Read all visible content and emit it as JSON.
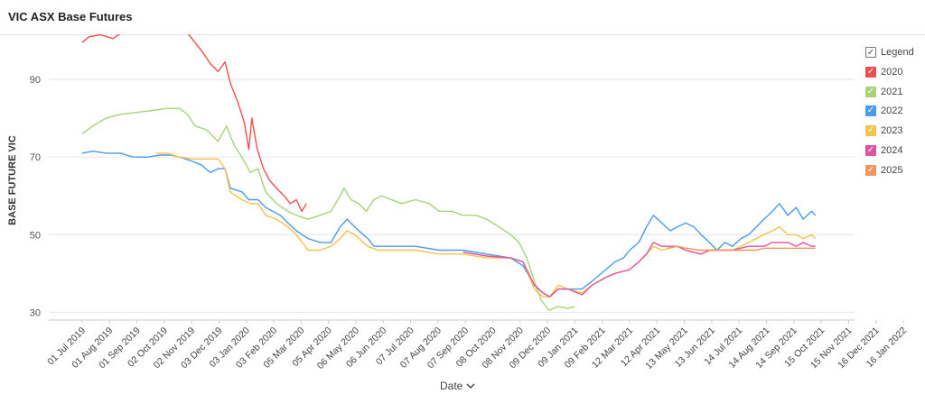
{
  "title": "VIC ASX Base Futures",
  "legend": {
    "header": "Legend",
    "items": [
      {
        "label": "2020",
        "color": "#f04f4f"
      },
      {
        "label": "2021",
        "color": "#a8d27a"
      },
      {
        "label": "2022",
        "color": "#4c9bef"
      },
      {
        "label": "2023",
        "color": "#f7c24a"
      },
      {
        "label": "2024",
        "color": "#e0529f"
      },
      {
        "label": "2025",
        "color": "#f4965a"
      }
    ]
  },
  "x_title": "Date",
  "chart_data": {
    "type": "line",
    "ylabel": "BASE FUTURE VIC",
    "xlabel": "Date",
    "ylim": [
      28,
      100
    ],
    "y_ticks": [
      30,
      50,
      70,
      90
    ],
    "x_range": [
      "2019-07-01",
      "2022-02-28"
    ],
    "x_ticks": [
      "01 Jul 2019",
      "01 Aug 2019",
      "01 Sep 2019",
      "02 Oct 2019",
      "02 Nov 2019",
      "03 Dec 2019",
      "03 Jan 2020",
      "03 Feb 2020",
      "05 Mar 2020",
      "05 Apr 2020",
      "06 May 2020",
      "06 Jun 2020",
      "07 Jul 2020",
      "07 Aug 2020",
      "07 Sep 2020",
      "08 Oct 2020",
      "08 Nov 2020",
      "09 Dec 2020",
      "09 Jan 2021",
      "09 Feb 2021",
      "12 Mar 2021",
      "12 Apr 2021",
      "13 May 2021",
      "13 Jun 2021",
      "14 Jul 2021",
      "14 Aug 2021",
      "14 Sep 2021",
      "15 Oct 2021",
      "15 Nov 2021",
      "16 Dec 2021",
      "16 Jan 2022"
    ],
    "series": [
      {
        "name": "2020",
        "color": "#f04f4f",
        "points": [
          [
            "2019-07-01",
            99.5
          ],
          [
            "2019-07-10",
            101
          ],
          [
            "2019-07-25",
            101.5
          ],
          [
            "2019-08-10",
            100.5
          ],
          [
            "2019-08-25",
            102.5
          ],
          [
            "2019-09-10",
            104
          ],
          [
            "2019-09-25",
            103.5
          ],
          [
            "2019-10-10",
            104
          ],
          [
            "2019-10-25",
            104.5
          ],
          [
            "2019-11-05",
            104.5
          ],
          [
            "2019-11-15",
            102
          ],
          [
            "2019-11-25",
            99.5
          ],
          [
            "2019-12-05",
            97
          ],
          [
            "2019-12-15",
            94
          ],
          [
            "2019-12-25",
            92
          ],
          [
            "2020-01-03",
            94.5
          ],
          [
            "2020-01-10",
            89
          ],
          [
            "2020-01-20",
            84
          ],
          [
            "2020-01-28",
            79
          ],
          [
            "2020-02-03",
            72
          ],
          [
            "2020-02-07",
            80
          ],
          [
            "2020-02-14",
            72
          ],
          [
            "2020-02-22",
            67
          ],
          [
            "2020-03-01",
            64
          ],
          [
            "2020-03-10",
            62
          ],
          [
            "2020-03-20",
            60
          ],
          [
            "2020-03-28",
            58
          ],
          [
            "2020-04-05",
            59
          ],
          [
            "2020-04-12",
            56
          ],
          [
            "2020-04-18",
            58
          ]
        ]
      },
      {
        "name": "2021",
        "color": "#a8d27a",
        "points": [
          [
            "2019-07-01",
            76
          ],
          [
            "2019-07-15",
            78
          ],
          [
            "2019-08-01",
            80
          ],
          [
            "2019-08-20",
            81
          ],
          [
            "2019-09-10",
            81.5
          ],
          [
            "2019-10-01",
            82
          ],
          [
            "2019-10-20",
            82.5
          ],
          [
            "2019-11-05",
            82.5
          ],
          [
            "2019-11-15",
            81
          ],
          [
            "2019-11-25",
            78
          ],
          [
            "2019-12-10",
            77
          ],
          [
            "2019-12-25",
            74
          ],
          [
            "2020-01-05",
            78
          ],
          [
            "2020-01-15",
            73
          ],
          [
            "2020-01-25",
            70
          ],
          [
            "2020-02-05",
            66
          ],
          [
            "2020-02-15",
            67
          ],
          [
            "2020-02-25",
            61
          ],
          [
            "2020-03-10",
            58
          ],
          [
            "2020-03-25",
            56
          ],
          [
            "2020-04-05",
            55
          ],
          [
            "2020-04-20",
            54
          ],
          [
            "2020-05-06",
            55
          ],
          [
            "2020-05-20",
            56
          ],
          [
            "2020-06-01",
            60
          ],
          [
            "2020-06-06",
            62
          ],
          [
            "2020-06-15",
            59
          ],
          [
            "2020-06-25",
            58
          ],
          [
            "2020-07-05",
            56
          ],
          [
            "2020-07-15",
            59
          ],
          [
            "2020-07-25",
            60
          ],
          [
            "2020-08-07",
            59
          ],
          [
            "2020-08-20",
            58
          ],
          [
            "2020-09-07",
            59
          ],
          [
            "2020-09-25",
            58
          ],
          [
            "2020-10-08",
            56
          ],
          [
            "2020-10-25",
            56
          ],
          [
            "2020-11-08",
            55
          ],
          [
            "2020-11-25",
            55
          ],
          [
            "2020-12-09",
            54
          ],
          [
            "2020-12-25",
            52
          ],
          [
            "2021-01-09",
            50
          ],
          [
            "2021-01-20",
            48
          ],
          [
            "2021-01-30",
            44
          ],
          [
            "2021-02-09",
            38
          ],
          [
            "2021-02-18",
            33
          ],
          [
            "2021-02-28",
            30.5
          ],
          [
            "2021-03-12",
            31.5
          ],
          [
            "2021-03-25",
            31
          ],
          [
            "2021-04-02",
            31.5
          ]
        ]
      },
      {
        "name": "2022",
        "color": "#4c9bef",
        "points": [
          [
            "2019-07-01",
            71
          ],
          [
            "2019-07-15",
            71.5
          ],
          [
            "2019-08-01",
            71
          ],
          [
            "2019-08-20",
            71
          ],
          [
            "2019-09-05",
            70
          ],
          [
            "2019-09-25",
            70
          ],
          [
            "2019-10-10",
            70.5
          ],
          [
            "2019-10-25",
            70.5
          ],
          [
            "2019-11-05",
            70
          ],
          [
            "2019-11-20",
            69
          ],
          [
            "2019-12-03",
            68
          ],
          [
            "2019-12-15",
            66
          ],
          [
            "2019-12-25",
            67
          ],
          [
            "2020-01-03",
            67
          ],
          [
            "2020-01-10",
            62
          ],
          [
            "2020-01-25",
            61
          ],
          [
            "2020-02-03",
            59
          ],
          [
            "2020-02-15",
            59
          ],
          [
            "2020-02-25",
            57
          ],
          [
            "2020-03-05",
            56
          ],
          [
            "2020-03-15",
            55
          ],
          [
            "2020-03-25",
            53
          ],
          [
            "2020-04-05",
            51
          ],
          [
            "2020-04-20",
            49
          ],
          [
            "2020-05-06",
            48
          ],
          [
            "2020-05-20",
            48
          ],
          [
            "2020-06-01",
            52
          ],
          [
            "2020-06-10",
            54
          ],
          [
            "2020-06-20",
            52
          ],
          [
            "2020-07-01",
            50
          ],
          [
            "2020-07-07",
            49
          ],
          [
            "2020-07-15",
            47
          ],
          [
            "2020-08-07",
            47
          ],
          [
            "2020-09-07",
            47
          ],
          [
            "2020-10-08",
            46
          ],
          [
            "2020-11-08",
            46
          ],
          [
            "2020-12-09",
            45
          ],
          [
            "2021-01-09",
            44
          ],
          [
            "2021-01-25",
            42
          ],
          [
            "2021-02-09",
            37
          ],
          [
            "2021-02-20",
            35
          ],
          [
            "2021-03-01",
            34
          ],
          [
            "2021-03-12",
            36
          ],
          [
            "2021-03-25",
            36
          ],
          [
            "2021-04-12",
            36
          ],
          [
            "2021-04-25",
            38
          ],
          [
            "2021-05-13",
            41
          ],
          [
            "2021-05-25",
            43
          ],
          [
            "2021-06-05",
            44
          ],
          [
            "2021-06-13",
            46
          ],
          [
            "2021-06-25",
            48
          ],
          [
            "2021-07-05",
            52
          ],
          [
            "2021-07-14",
            55
          ],
          [
            "2021-07-25",
            53
          ],
          [
            "2021-08-05",
            51
          ],
          [
            "2021-08-14",
            52
          ],
          [
            "2021-08-25",
            53
          ],
          [
            "2021-09-05",
            52
          ],
          [
            "2021-09-14",
            50
          ],
          [
            "2021-09-25",
            48
          ],
          [
            "2021-10-05",
            46
          ],
          [
            "2021-10-15",
            48
          ],
          [
            "2021-10-25",
            47
          ],
          [
            "2021-11-05",
            49
          ],
          [
            "2021-11-15",
            50
          ],
          [
            "2021-11-25",
            52
          ],
          [
            "2021-12-05",
            54
          ],
          [
            "2021-12-16",
            56
          ],
          [
            "2021-12-25",
            58
          ],
          [
            "2022-01-05",
            55
          ],
          [
            "2022-01-16",
            57
          ],
          [
            "2022-01-25",
            54
          ],
          [
            "2022-02-05",
            56
          ],
          [
            "2022-02-10",
            55
          ]
        ]
      },
      {
        "name": "2023",
        "color": "#f7c24a",
        "points": [
          [
            "2019-10-05",
            71
          ],
          [
            "2019-10-20",
            71
          ],
          [
            "2019-11-05",
            70
          ],
          [
            "2019-11-20",
            69.5
          ],
          [
            "2019-12-10",
            69.5
          ],
          [
            "2019-12-25",
            69.5
          ],
          [
            "2020-01-03",
            67
          ],
          [
            "2020-01-10",
            61
          ],
          [
            "2020-01-25",
            59
          ],
          [
            "2020-02-05",
            58
          ],
          [
            "2020-02-15",
            58
          ],
          [
            "2020-02-25",
            55
          ],
          [
            "2020-03-10",
            54
          ],
          [
            "2020-03-25",
            52
          ],
          [
            "2020-04-05",
            50
          ],
          [
            "2020-04-20",
            46
          ],
          [
            "2020-05-06",
            46
          ],
          [
            "2020-05-20",
            47
          ],
          [
            "2020-06-01",
            49
          ],
          [
            "2020-06-10",
            51
          ],
          [
            "2020-06-20",
            50
          ],
          [
            "2020-07-01",
            48
          ],
          [
            "2020-07-07",
            47
          ],
          [
            "2020-07-20",
            46
          ],
          [
            "2020-08-07",
            46
          ],
          [
            "2020-09-07",
            46
          ],
          [
            "2020-10-08",
            45
          ],
          [
            "2020-11-08",
            45
          ],
          [
            "2020-12-09",
            44
          ],
          [
            "2021-01-09",
            44
          ],
          [
            "2021-01-25",
            43
          ],
          [
            "2021-02-09",
            36
          ],
          [
            "2021-02-20",
            34
          ],
          [
            "2021-03-01",
            34
          ],
          [
            "2021-03-12",
            37
          ],
          [
            "2021-03-25",
            36
          ],
          [
            "2021-04-12",
            35
          ],
          [
            "2021-04-25",
            37
          ],
          [
            "2021-05-13",
            39
          ],
          [
            "2021-05-25",
            40
          ],
          [
            "2021-06-13",
            41
          ],
          [
            "2021-06-25",
            43
          ],
          [
            "2021-07-05",
            45
          ],
          [
            "2021-07-14",
            47
          ],
          [
            "2021-07-25",
            46
          ],
          [
            "2021-08-14",
            47
          ],
          [
            "2021-08-25",
            46
          ],
          [
            "2021-09-14",
            45
          ],
          [
            "2021-09-25",
            46
          ],
          [
            "2021-10-15",
            46
          ],
          [
            "2021-10-25",
            46
          ],
          [
            "2021-11-05",
            47
          ],
          [
            "2021-11-15",
            48
          ],
          [
            "2021-11-25",
            49
          ],
          [
            "2021-12-05",
            50
          ],
          [
            "2021-12-16",
            51
          ],
          [
            "2021-12-25",
            52
          ],
          [
            "2022-01-05",
            50
          ],
          [
            "2022-01-16",
            50
          ],
          [
            "2022-01-25",
            49
          ],
          [
            "2022-02-05",
            50
          ],
          [
            "2022-02-10",
            49
          ]
        ]
      },
      {
        "name": "2024",
        "color": "#e0529f",
        "points": [
          [
            "2020-11-08",
            45.5
          ],
          [
            "2020-12-09",
            44.5
          ],
          [
            "2021-01-09",
            44
          ],
          [
            "2021-01-25",
            43
          ],
          [
            "2021-02-09",
            37
          ],
          [
            "2021-02-20",
            35
          ],
          [
            "2021-03-01",
            34
          ],
          [
            "2021-03-12",
            36
          ],
          [
            "2021-03-25",
            36
          ],
          [
            "2021-04-12",
            34.5
          ],
          [
            "2021-04-25",
            37
          ],
          [
            "2021-05-13",
            39
          ],
          [
            "2021-05-25",
            40
          ],
          [
            "2021-06-13",
            41
          ],
          [
            "2021-06-25",
            43
          ],
          [
            "2021-07-05",
            45
          ],
          [
            "2021-07-14",
            48
          ],
          [
            "2021-07-25",
            47
          ],
          [
            "2021-08-14",
            47
          ],
          [
            "2021-08-25",
            46
          ],
          [
            "2021-09-14",
            45
          ],
          [
            "2021-09-25",
            46
          ],
          [
            "2021-10-15",
            46
          ],
          [
            "2021-10-25",
            46
          ],
          [
            "2021-11-15",
            47
          ],
          [
            "2021-11-25",
            47
          ],
          [
            "2021-12-05",
            47
          ],
          [
            "2021-12-16",
            48
          ],
          [
            "2021-12-25",
            48
          ],
          [
            "2022-01-05",
            48
          ],
          [
            "2022-01-16",
            47
          ],
          [
            "2022-01-25",
            48
          ],
          [
            "2022-02-05",
            47
          ],
          [
            "2022-02-10",
            47
          ]
        ]
      },
      {
        "name": "2025",
        "color": "#f4965a",
        "points": [
          [
            "2021-08-01",
            46.5
          ],
          [
            "2021-08-14",
            47
          ],
          [
            "2021-08-25",
            46.5
          ],
          [
            "2021-09-14",
            46
          ],
          [
            "2021-09-25",
            46
          ],
          [
            "2021-10-15",
            46
          ],
          [
            "2021-10-25",
            46
          ],
          [
            "2021-11-15",
            46
          ],
          [
            "2021-11-25",
            46
          ],
          [
            "2021-12-05",
            46.5
          ],
          [
            "2021-12-16",
            46.5
          ],
          [
            "2021-12-25",
            46.5
          ],
          [
            "2022-01-05",
            46.5
          ],
          [
            "2022-01-16",
            46.5
          ],
          [
            "2022-01-25",
            46.5
          ],
          [
            "2022-02-05",
            46.5
          ],
          [
            "2022-02-10",
            46.5
          ]
        ]
      }
    ]
  }
}
